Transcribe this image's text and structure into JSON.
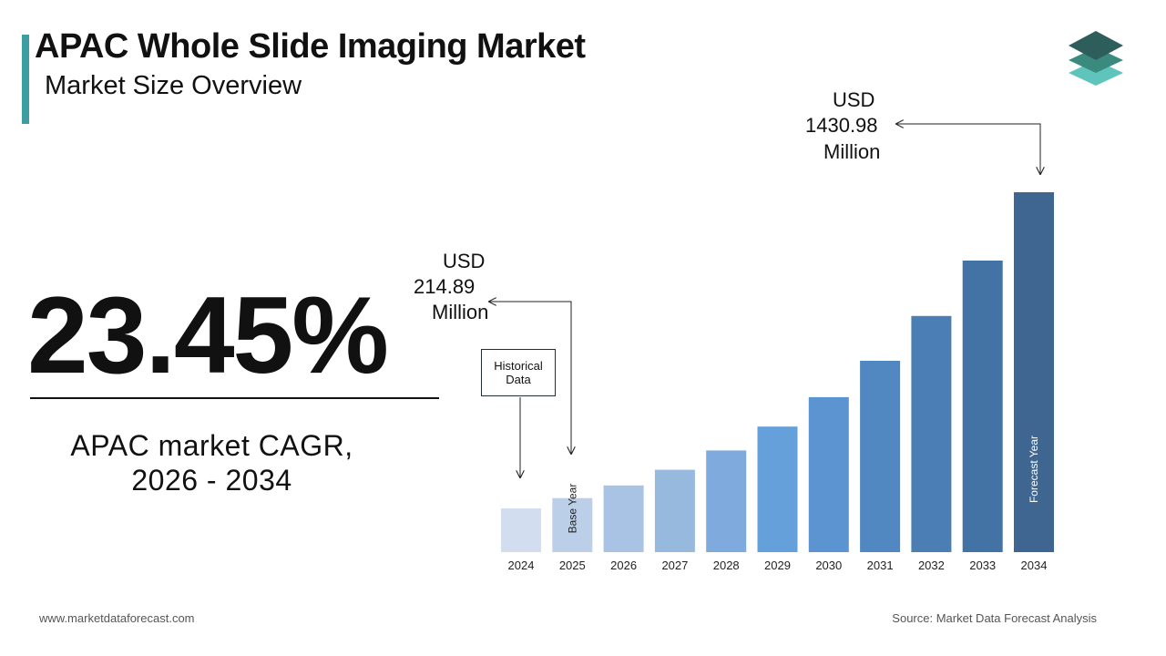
{
  "header": {
    "title": "APAC Whole Slide Imaging Market",
    "subtitle": "Market Size Overview"
  },
  "cagr": {
    "value": "23.45%",
    "label_line1": "APAC market CAGR,",
    "label_line2": "2026 - 2034"
  },
  "callouts": {
    "start": {
      "line1": "USD",
      "line2": "214.89",
      "line3": "Million"
    },
    "end": {
      "line1": "USD",
      "line2": "1430.98",
      "line3": "Million"
    },
    "historical_box": {
      "line1": "Historical",
      "line2": "Data"
    }
  },
  "footer": {
    "website": "www.marketdataforecast.com",
    "source": "Source: Market Data Forecast Analysis"
  },
  "colors": {
    "accent": "#3c9ea0",
    "logo_top": "#2e5e5c",
    "logo_mid": "#3a8a80",
    "logo_bottom": "#5fc4bc"
  },
  "chart_data": {
    "type": "bar",
    "categories": [
      "2024",
      "2025",
      "2026",
      "2027",
      "2028",
      "2029",
      "2030",
      "2031",
      "2032",
      "2033",
      "2034"
    ],
    "values": [
      174.07,
      214.89,
      265.28,
      327.49,
      404.28,
      499.08,
      616.12,
      760.6,
      938.96,
      1159.14,
      1430.98
    ],
    "bar_labels": {
      "2025": "Base Year",
      "2034": "Forecast Year"
    },
    "colors": [
      "#d2def0",
      "#bccfe9",
      "#a9c3e4",
      "#97b9de",
      "#7eaadd",
      "#66a0da",
      "#5b94d0",
      "#5288c2",
      "#4a7eb4",
      "#4373a4",
      "#3e6690"
    ],
    "ylabel": "",
    "xlabel": "",
    "grid": false
  }
}
